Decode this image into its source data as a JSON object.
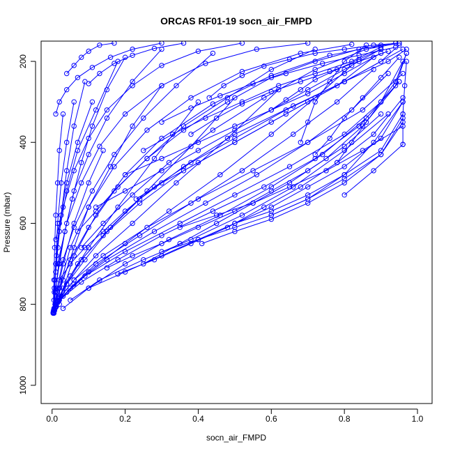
{
  "chart_data": {
    "type": "line",
    "title": "ORCAS RF01-19 socn_air_FMPD",
    "xlabel": "socn_air_FMPD",
    "ylabel": "Pressure (mbar)",
    "xlim": [
      -0.03,
      1.04
    ],
    "ylim": [
      1045,
      150
    ],
    "y_reversed": true,
    "x_ticks": [
      "0.0",
      "0.2",
      "0.4",
      "0.6",
      "0.8",
      "1.0"
    ],
    "y_ticks": [
      "200",
      "400",
      "600",
      "800",
      "1000"
    ],
    "grid": false,
    "legend": "none",
    "color": "#0000ff",
    "marker": "open-circle",
    "series": [
      {
        "x": [
          0.005,
          0.008,
          0.015,
          0.03,
          0.06,
          0.1,
          0.14
        ],
        "y": [
          822,
          800,
          770,
          700,
          600,
          500,
          420
        ]
      },
      {
        "x": [
          0.004,
          0.012,
          0.03,
          0.06,
          0.1,
          0.16,
          0.22,
          0.3
        ],
        "y": [
          818,
          790,
          740,
          660,
          560,
          460,
          360,
          260
        ]
      },
      {
        "x": [
          0.006,
          0.02,
          0.05,
          0.1,
          0.18,
          0.28,
          0.4
        ],
        "y": [
          812,
          780,
          730,
          660,
          560,
          440,
          300
        ]
      },
      {
        "x": [
          0.005,
          0.015,
          0.04,
          0.09,
          0.16,
          0.26,
          0.38,
          0.5
        ],
        "y": [
          815,
          790,
          750,
          690,
          610,
          520,
          410,
          290
        ]
      },
      {
        "x": [
          0.008,
          0.025,
          0.06,
          0.12,
          0.22,
          0.34,
          0.48,
          0.62
        ],
        "y": [
          808,
          780,
          740,
          680,
          600,
          500,
          390,
          270
        ]
      },
      {
        "x": [
          0.01,
          0.04,
          0.1,
          0.2,
          0.32,
          0.46,
          0.6,
          0.72,
          0.82
        ],
        "y": [
          805,
          770,
          720,
          650,
          570,
          480,
          380,
          290,
          210
        ]
      },
      {
        "x": [
          0.012,
          0.05,
          0.12,
          0.24,
          0.38,
          0.52,
          0.66,
          0.78,
          0.88
        ],
        "y": [
          800,
          760,
          700,
          630,
          550,
          470,
          380,
          300,
          220
        ]
      },
      {
        "x": [
          0.015,
          0.06,
          0.15,
          0.28,
          0.42,
          0.56,
          0.7,
          0.82,
          0.92
        ],
        "y": [
          795,
          750,
          690,
          620,
          550,
          480,
          400,
          320,
          230
        ]
      },
      {
        "x": [
          0.02,
          0.08,
          0.18,
          0.3,
          0.44,
          0.58,
          0.72,
          0.84,
          0.94,
          0.97
        ],
        "y": [
          790,
          745,
          690,
          630,
          570,
          510,
          440,
          360,
          260,
          180
        ]
      },
      {
        "x": [
          0.005,
          0.02,
          0.06,
          0.14,
          0.26,
          0.4,
          0.55,
          0.7,
          0.85,
          0.96
        ],
        "y": [
          820,
          785,
          740,
          680,
          610,
          540,
          470,
          400,
          320,
          230
        ]
      },
      {
        "x": [
          0.007,
          0.03,
          0.09,
          0.2,
          0.35,
          0.5,
          0.65,
          0.8,
          0.9,
          0.96
        ],
        "y": [
          815,
          780,
          730,
          670,
          600,
          530,
          460,
          380,
          300,
          200
        ]
      },
      {
        "x": [
          0.003,
          0.006,
          0.01,
          0.02,
          0.04,
          0.07,
          0.12,
          0.18
        ],
        "y": [
          820,
          760,
          700,
          620,
          520,
          420,
          320,
          200
        ]
      },
      {
        "x": [
          0.004,
          0.009,
          0.018,
          0.035,
          0.06,
          0.1,
          0.15,
          0.22,
          0.3
        ],
        "y": [
          818,
          770,
          700,
          620,
          520,
          430,
          340,
          250,
          170
        ]
      },
      {
        "x": [
          0.006,
          0.014,
          0.03,
          0.06,
          0.11,
          0.17,
          0.25,
          0.34,
          0.44
        ],
        "y": [
          812,
          760,
          690,
          610,
          520,
          430,
          340,
          260,
          180
        ]
      },
      {
        "x": [
          0.01,
          0.02,
          0.05,
          0.1,
          0.17,
          0.26,
          0.36,
          0.48,
          0.6,
          0.72
        ],
        "y": [
          808,
          760,
          690,
          610,
          520,
          440,
          360,
          290,
          220,
          170
        ]
      },
      {
        "x": [
          0.012,
          0.03,
          0.07,
          0.14,
          0.24,
          0.36,
          0.5,
          0.64,
          0.78,
          0.88
        ],
        "y": [
          805,
          760,
          700,
          630,
          550,
          470,
          400,
          330,
          260,
          190
        ]
      },
      {
        "x": [
          0.03,
          0.1,
          0.2,
          0.32,
          0.46,
          0.6,
          0.74,
          0.86,
          0.95
        ],
        "y": [
          810,
          760,
          700,
          640,
          580,
          510,
          430,
          340,
          250
        ]
      },
      {
        "x": [
          0.05,
          0.13,
          0.25,
          0.38,
          0.52,
          0.66,
          0.8,
          0.92
        ],
        "y": [
          790,
          740,
          690,
          640,
          580,
          510,
          420,
          330
        ]
      },
      {
        "x": [
          0.02,
          0.04,
          0.08,
          0.15,
          0.24,
          0.36,
          0.5,
          0.66,
          0.8,
          0.92,
          0.97
        ],
        "y": [
          800,
          750,
          690,
          620,
          540,
          460,
          380,
          310,
          250,
          200,
          170
        ]
      },
      {
        "x": [
          0.003,
          0.005,
          0.008,
          0.012,
          0.02,
          0.04,
          0.07,
          0.11
        ],
        "y": [
          822,
          790,
          740,
          680,
          600,
          500,
          400,
          300
        ]
      },
      {
        "x": [
          0.004,
          0.006,
          0.01,
          0.016,
          0.025,
          0.04,
          0.06,
          0.09
        ],
        "y": [
          815,
          770,
          720,
          660,
          580,
          470,
          360,
          250
        ]
      },
      {
        "x": [
          0.005,
          0.01,
          0.02,
          0.035,
          0.055,
          0.08,
          0.11,
          0.15,
          0.2
        ],
        "y": [
          810,
          760,
          700,
          620,
          540,
          450,
          360,
          270,
          190
        ]
      },
      {
        "x": [
          0.02,
          0.05,
          0.09,
          0.14,
          0.2,
          0.28,
          0.38,
          0.5,
          0.64,
          0.8,
          0.96
        ],
        "y": [
          740,
          700,
          660,
          620,
          570,
          510,
          450,
          390,
          320,
          250,
          170
        ]
      },
      {
        "x": [
          0.25,
          0.35,
          0.45,
          0.55,
          0.65,
          0.75,
          0.85,
          0.95
        ],
        "y": [
          700,
          650,
          600,
          550,
          500,
          440,
          360,
          250
        ]
      },
      {
        "x": [
          0.3,
          0.4,
          0.5,
          0.6,
          0.7,
          0.8,
          0.88,
          0.96
        ],
        "y": [
          670,
          640,
          610,
          580,
          540,
          480,
          400,
          300
        ]
      },
      {
        "x": [
          0.41,
          0.5,
          0.6,
          0.7,
          0.8,
          0.9,
          0.96
        ],
        "y": [
          650,
          620,
          590,
          550,
          500,
          430,
          350
        ]
      },
      {
        "x": [
          0.1,
          0.2,
          0.3,
          0.4,
          0.5,
          0.6,
          0.7,
          0.8,
          0.9,
          0.96
        ],
        "y": [
          760,
          720,
          680,
          640,
          600,
          560,
          510,
          460,
          390,
          300
        ]
      },
      {
        "x": [
          0.15,
          0.22,
          0.3,
          0.4,
          0.5,
          0.6,
          0.7,
          0.8,
          0.9
        ],
        "y": [
          710,
          680,
          650,
          610,
          570,
          520,
          470,
          410,
          330
        ]
      },
      {
        "x": [
          0.18,
          0.28,
          0.38,
          0.48,
          0.58,
          0.68,
          0.78,
          0.88,
          0.96
        ],
        "y": [
          725,
          690,
          650,
          610,
          560,
          510,
          450,
          380,
          290
        ]
      },
      {
        "x": [
          0.35,
          0.45,
          0.55,
          0.65,
          0.75,
          0.85,
          0.96
        ],
        "y": [
          610,
          580,
          550,
          510,
          470,
          420,
          360
        ]
      },
      {
        "x": [
          0.5,
          0.6,
          0.7,
          0.8,
          0.9,
          0.96
        ],
        "y": [
          600,
          570,
          530,
          480,
          420,
          330
        ]
      },
      {
        "x": [
          0.6,
          0.7,
          0.8,
          0.9,
          0.96
        ],
        "y": [
          580,
          540,
          490,
          430,
          340
        ]
      },
      {
        "x": [
          0.8,
          0.88,
          0.96
        ],
        "y": [
          530,
          470,
          405
        ]
      },
      {
        "x": [
          0.96,
          0.96,
          0.965,
          0.97
        ],
        "y": [
          405,
          330,
          260,
          200
        ]
      },
      {
        "x": [
          0.23,
          0.3,
          0.4,
          0.5,
          0.6,
          0.7,
          0.8,
          0.9,
          0.95
        ],
        "y": [
          540,
          500,
          450,
          400,
          350,
          300,
          250,
          200,
          160
        ]
      },
      {
        "x": [
          0.12,
          0.2,
          0.3,
          0.4,
          0.5,
          0.6,
          0.7,
          0.8,
          0.9
        ],
        "y": [
          560,
          520,
          470,
          420,
          370,
          320,
          270,
          220,
          170
        ]
      },
      {
        "x": [
          0.2,
          0.3,
          0.4,
          0.5,
          0.6,
          0.7,
          0.8,
          0.9
        ],
        "y": [
          480,
          440,
          400,
          360,
          320,
          280,
          230,
          180
        ]
      },
      {
        "x": [
          0.25,
          0.33,
          0.42,
          0.52,
          0.62,
          0.72,
          0.82,
          0.9
        ],
        "y": [
          420,
          380,
          340,
          300,
          260,
          230,
          200,
          165
        ]
      },
      {
        "x": [
          0.07,
          0.12,
          0.18,
          0.26,
          0.36,
          0.48,
          0.6,
          0.72,
          0.84,
          0.94
        ],
        "y": [
          620,
          570,
          510,
          440,
          370,
          300,
          240,
          200,
          170,
          155
        ]
      },
      {
        "x": [
          0.08,
          0.14,
          0.22,
          0.32,
          0.44,
          0.58,
          0.72,
          0.86,
          0.95
        ],
        "y": [
          660,
          600,
          530,
          450,
          370,
          290,
          220,
          170,
          155
        ]
      },
      {
        "x": [
          0.01,
          0.03,
          0.06,
          0.1,
          0.15,
          0.22,
          0.3,
          0.4,
          0.52
        ],
        "y": [
          640,
          560,
          470,
          390,
          320,
          260,
          210,
          175,
          155
        ]
      },
      {
        "x": [
          0.015,
          0.04,
          0.08,
          0.13,
          0.2,
          0.3,
          0.42,
          0.56,
          0.7
        ],
        "y": [
          700,
          600,
          500,
          410,
          330,
          260,
          205,
          170,
          155
        ]
      },
      {
        "x": [
          0.02,
          0.05,
          0.1,
          0.17,
          0.26,
          0.38,
          0.52,
          0.68,
          0.82
        ],
        "y": [
          760,
          660,
          560,
          460,
          370,
          290,
          225,
          180,
          158
        ]
      },
      {
        "x": [
          0.025,
          0.06,
          0.12,
          0.2,
          0.3,
          0.44,
          0.6,
          0.76,
          0.9
        ],
        "y": [
          780,
          680,
          580,
          480,
          390,
          305,
          235,
          185,
          160
        ]
      },
      {
        "x": [
          0.01,
          0.02,
          0.04,
          0.07,
          0.11,
          0.16,
          0.22,
          0.3
        ],
        "y": [
          330,
          300,
          270,
          240,
          215,
          190,
          170,
          155
        ]
      },
      {
        "x": [
          0.04,
          0.06,
          0.08,
          0.1,
          0.13,
          0.17
        ],
        "y": [
          230,
          210,
          190,
          175,
          160,
          155
        ]
      },
      {
        "x": [
          0.1,
          0.13,
          0.17,
          0.22,
          0.28,
          0.36
        ],
        "y": [
          255,
          230,
          205,
          185,
          168,
          155
        ]
      },
      {
        "x": [
          0.68,
          0.7,
          0.72,
          0.76,
          0.8,
          0.86
        ],
        "y": [
          400,
          350,
          300,
          250,
          200,
          160
        ]
      },
      {
        "x": [
          0.43,
          0.47,
          0.52,
          0.58,
          0.65,
          0.72,
          0.8,
          0.88,
          0.95
        ],
        "y": [
          290,
          260,
          235,
          212,
          195,
          180,
          170,
          160,
          155
        ]
      },
      {
        "x": [
          0.38,
          0.45,
          0.52,
          0.6,
          0.68,
          0.76,
          0.84,
          0.92
        ],
        "y": [
          380,
          340,
          305,
          275,
          250,
          225,
          200,
          175
        ]
      },
      {
        "x": [
          0.3,
          0.38,
          0.46,
          0.55,
          0.64,
          0.74,
          0.84,
          0.94
        ],
        "y": [
          350,
          315,
          285,
          255,
          230,
          205,
          185,
          165
        ]
      },
      {
        "x": [
          0.6,
          0.64,
          0.68,
          0.72,
          0.78,
          0.84,
          0.9
        ],
        "y": [
          320,
          295,
          270,
          245,
          220,
          195,
          170
        ]
      },
      {
        "x": [
          0.72,
          0.76,
          0.8,
          0.85,
          0.9,
          0.95
        ],
        "y": [
          430,
          390,
          340,
          290,
          240,
          190
        ]
      },
      {
        "x": [
          0.78,
          0.82,
          0.86,
          0.9,
          0.94,
          0.97
        ],
        "y": [
          450,
          400,
          350,
          300,
          250,
          180
        ]
      },
      {
        "x": [
          0.003,
          0.005,
          0.007,
          0.01,
          0.015,
          0.02,
          0.03
        ],
        "y": [
          822,
          740,
          660,
          580,
          500,
          420,
          330
        ]
      },
      {
        "x": [
          0.005,
          0.01,
          0.015,
          0.025,
          0.04,
          0.06
        ],
        "y": [
          815,
          700,
          600,
          500,
          400,
          300
        ]
      }
    ]
  }
}
